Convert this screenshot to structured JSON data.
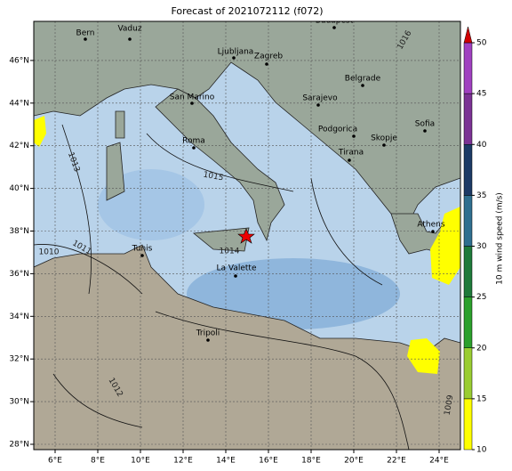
{
  "title": "Forecast of 2021072112 (f072)",
  "lon_ticks": [
    "6°E",
    "8°E",
    "10°E",
    "12°E",
    "14°E",
    "16°E",
    "18°E",
    "20°E",
    "22°E",
    "24°E"
  ],
  "lat_ticks": [
    "28°N",
    "30°N",
    "32°N",
    "34°N",
    "36°N",
    "38°N",
    "40°N",
    "42°N",
    "44°N",
    "46°N"
  ],
  "cities": [
    "Budapest",
    "Bern",
    "Vaduz",
    "Ljubljana",
    "Zagreb",
    "Belgrade",
    "San Marino",
    "Sarajevo",
    "Podgorica",
    "Skopje",
    "Sofia",
    "Roma",
    "Tirana",
    "Athens",
    "Tunis",
    "La Valette",
    "Tripoli"
  ],
  "isobar_labels": [
    "1013",
    "1015",
    "1014",
    "1010",
    "1011",
    "1012",
    "1009",
    "1016"
  ],
  "colorbar": {
    "label": "10 m wind speed (m/s)",
    "ticks": [
      "10",
      "15",
      "20",
      "25",
      "30",
      "35",
      "40",
      "45",
      "50"
    ]
  }
}
